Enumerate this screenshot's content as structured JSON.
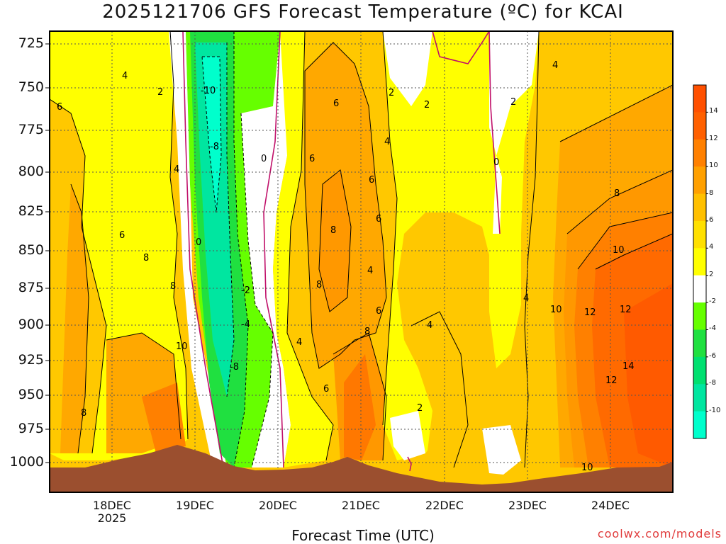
{
  "chart_data": {
    "type": "heatmap",
    "title": "2025121706 GFS Forecast Temperature (ºC) for KCAI",
    "xlabel": "Forecast Time (UTC)",
    "ylabel": "",
    "y_ticks": [
      725,
      750,
      775,
      800,
      825,
      850,
      875,
      900,
      925,
      950,
      975,
      1000
    ],
    "x_ticks": [
      {
        "label": "18DEC",
        "sub": "2025"
      },
      {
        "label": "19DEC",
        "sub": ""
      },
      {
        "label": "20DEC",
        "sub": ""
      },
      {
        "label": "21DEC",
        "sub": ""
      },
      {
        "label": "22DEC",
        "sub": ""
      },
      {
        "label": "23DEC",
        "sub": ""
      },
      {
        "label": "24DEC",
        "sub": ""
      }
    ],
    "colorbar": {
      "levels": [
        -10,
        -8,
        -6,
        -4,
        -2,
        2,
        4,
        6,
        8,
        10,
        12,
        14
      ],
      "colors": [
        "#00ffcc",
        "#00e6a0",
        "#00e070",
        "#20e040",
        "#66ff00",
        "#ffffff",
        "#ffff00",
        "#ffe000",
        "#ffc000",
        "#ffa000",
        "#ff8000",
        "#ff6000",
        "#ff5000"
      ]
    },
    "contour_labels": [
      "-10",
      "-8",
      "-8",
      "-4",
      "-2",
      "0",
      "0",
      "0",
      "2",
      "2",
      "2",
      "2",
      "2",
      "4",
      "4",
      "4",
      "4",
      "4",
      "4",
      "4",
      "4",
      "6",
      "6",
      "6",
      "6",
      "6",
      "6",
      "6",
      "6",
      "8",
      "8",
      "8",
      "8",
      "8",
      "8",
      "8",
      "10",
      "10",
      "10",
      "10",
      "12",
      "12",
      "12",
      "14"
    ],
    "grid": true
  },
  "watermark": "coolwx.com/models"
}
